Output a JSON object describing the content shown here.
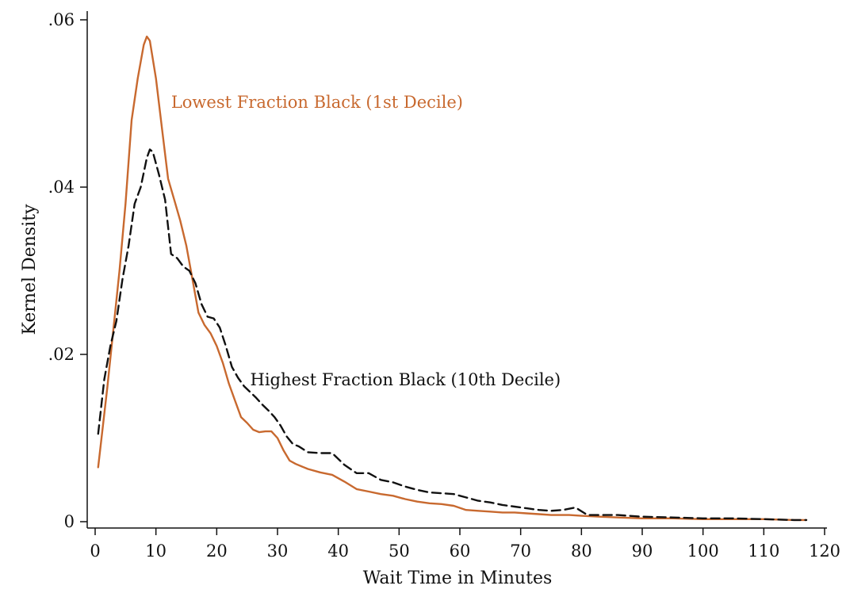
{
  "chart_data": {
    "type": "line",
    "title": "",
    "xlabel": "Wait Time in Minutes",
    "ylabel": "Kernel Density",
    "xlim": [
      0,
      120
    ],
    "ylim": [
      0,
      0.06
    ],
    "grid": false,
    "x_ticks": [
      0,
      10,
      20,
      30,
      40,
      50,
      60,
      70,
      80,
      90,
      100,
      110,
      120
    ],
    "x_tick_labels": [
      "0",
      "10",
      "20",
      "30",
      "40",
      "50",
      "60",
      "70",
      "80",
      "90",
      "100",
      "110",
      "120"
    ],
    "y_ticks": [
      0,
      0.02,
      0.04,
      0.06
    ],
    "y_tick_labels": [
      "0",
      ".02",
      ".04",
      ".06"
    ],
    "series": [
      {
        "name": "Lowest Fraction Black (1st Decile)",
        "color": "#c8692f",
        "dash": "solid",
        "x": [
          0.5,
          2,
          4,
          5,
          6,
          7,
          8,
          8.5,
          9,
          10,
          11,
          12,
          13,
          14,
          15,
          16,
          17,
          18,
          19,
          20,
          21,
          22,
          23,
          24,
          25,
          26,
          27,
          28,
          29,
          30,
          31,
          32,
          33,
          35,
          37,
          39,
          41,
          43,
          45,
          47,
          49,
          51,
          53,
          55,
          57,
          59,
          61,
          63,
          65,
          67,
          69,
          71,
          73,
          75,
          78,
          80,
          83,
          86,
          90,
          95,
          100,
          105,
          110,
          115,
          117
        ],
        "y": [
          0.0065,
          0.016,
          0.03,
          0.038,
          0.048,
          0.053,
          0.057,
          0.058,
          0.0575,
          0.053,
          0.047,
          0.041,
          0.0385,
          0.036,
          0.033,
          0.029,
          0.025,
          0.0235,
          0.0225,
          0.021,
          0.019,
          0.0165,
          0.0145,
          0.0125,
          0.0118,
          0.011,
          0.0107,
          0.0108,
          0.0108,
          0.01,
          0.0085,
          0.0073,
          0.0069,
          0.0063,
          0.0059,
          0.0056,
          0.0048,
          0.0039,
          0.0036,
          0.0033,
          0.0031,
          0.0027,
          0.0024,
          0.0022,
          0.0021,
          0.0019,
          0.0014,
          0.0013,
          0.0012,
          0.0011,
          0.0011,
          0.001,
          0.0009,
          0.0008,
          0.0008,
          0.0007,
          0.0006,
          0.0005,
          0.0004,
          0.0004,
          0.0003,
          0.0003,
          0.0003,
          0.0002,
          0.0002
        ]
      },
      {
        "name": "Highest Fraction Black (10th Decile)",
        "color": "#111111",
        "dash": "dashed",
        "x": [
          0.5,
          1.5,
          2.5,
          3.5,
          4.5,
          5.5,
          6.5,
          7.5,
          8.5,
          9,
          9.5,
          10.5,
          11.5,
          12.5,
          13.5,
          14.5,
          15.5,
          16.5,
          17.5,
          18.5,
          19.5,
          20.5,
          21.5,
          22.5,
          23.5,
          24.5,
          25.5,
          26.5,
          27.5,
          28.5,
          29.5,
          30.5,
          31.5,
          32.5,
          33.5,
          35,
          37,
          39,
          41,
          43,
          45,
          47,
          49,
          51,
          53,
          55,
          57,
          59,
          61,
          63,
          65,
          67,
          69,
          71,
          73,
          75,
          77,
          79,
          81,
          83,
          86,
          90,
          95,
          100,
          105,
          110,
          115,
          117
        ],
        "y": [
          0.0105,
          0.017,
          0.021,
          0.024,
          0.029,
          0.033,
          0.038,
          0.04,
          0.0435,
          0.0445,
          0.0442,
          0.0415,
          0.0385,
          0.032,
          0.0315,
          0.0305,
          0.03,
          0.0285,
          0.026,
          0.0245,
          0.0243,
          0.0232,
          0.021,
          0.0185,
          0.0172,
          0.0162,
          0.0155,
          0.0148,
          0.014,
          0.0133,
          0.0125,
          0.0115,
          0.0102,
          0.0093,
          0.009,
          0.0083,
          0.0082,
          0.0082,
          0.0068,
          0.0058,
          0.0058,
          0.005,
          0.0047,
          0.0042,
          0.0038,
          0.0035,
          0.0034,
          0.0033,
          0.0029,
          0.0025,
          0.0023,
          0.002,
          0.0018,
          0.0016,
          0.0014,
          0.0013,
          0.0014,
          0.0017,
          0.0008,
          0.0008,
          0.0008,
          0.0006,
          0.0005,
          0.0004,
          0.0004,
          0.0003,
          0.0002,
          0.0002
        ]
      }
    ],
    "annotations": [
      {
        "text": "Lowest Fraction Black (1st Decile)",
        "series": 0,
        "x": 12.5,
        "y": 0.0495
      },
      {
        "text": "Highest Fraction Black (10th Decile)",
        "series": 1,
        "x": 25.5,
        "y": 0.0163
      }
    ]
  }
}
